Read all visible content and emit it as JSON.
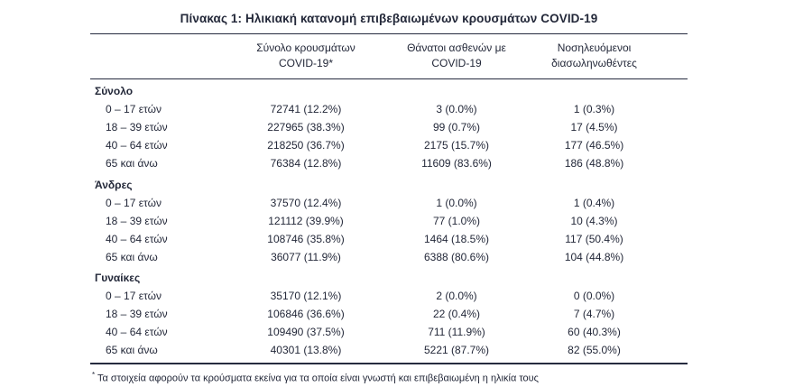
{
  "title": "Πίνακας 1: Ηλικιακή κατανομή επιβεβαιωμένων κρουσμάτων COVID-19",
  "colors": {
    "text": "#232839",
    "border": "#262b3f",
    "background": "#ffffff"
  },
  "table": {
    "header": {
      "col_cases": {
        "line1": "Σύνολο κρουσμάτων",
        "line2": "COVID-19*"
      },
      "col_deaths": {
        "line1": "Θάνατοι ασθενών με",
        "line2": "COVID-19"
      },
      "col_intubated": {
        "line1": "Νοσηλευόμενοι",
        "line2": "διασωληνωθέντες"
      }
    },
    "sections": [
      {
        "label": "Σύνολο",
        "rows": [
          {
            "label": "0 – 17 ετών",
            "cases": "72741 (12.2%)",
            "deaths": "3 (0.0%)",
            "intubated": "1 (0.3%)"
          },
          {
            "label": "18 – 39 ετών",
            "cases": "227965 (38.3%)",
            "deaths": "99 (0.7%)",
            "intubated": "17 (4.5%)"
          },
          {
            "label": "40 – 64 ετών",
            "cases": "218250 (36.7%)",
            "deaths": "2175 (15.7%)",
            "intubated": "177 (46.5%)"
          },
          {
            "label": "65 και άνω",
            "cases": "76384 (12.8%)",
            "deaths": "11609 (83.6%)",
            "intubated": "186 (48.8%)"
          }
        ]
      },
      {
        "label": "Άνδρες",
        "rows": [
          {
            "label": "0 – 17 ετών",
            "cases": "37570 (12.4%)",
            "deaths": "1 (0.0%)",
            "intubated": "1 (0.4%)"
          },
          {
            "label": "18 – 39 ετών",
            "cases": "121112 (39.9%)",
            "deaths": "77 (1.0%)",
            "intubated": "10 (4.3%)"
          },
          {
            "label": "40 – 64 ετών",
            "cases": "108746 (35.8%)",
            "deaths": "1464 (18.5%)",
            "intubated": "117 (50.4%)"
          },
          {
            "label": "65 και άνω",
            "cases": "36077 (11.9%)",
            "deaths": "6388 (80.6%)",
            "intubated": "104 (44.8%)"
          }
        ]
      },
      {
        "label": "Γυναίκες",
        "rows": [
          {
            "label": "0 – 17 ετών",
            "cases": "35170 (12.1%)",
            "deaths": "2 (0.0%)",
            "intubated": "0 (0.0%)"
          },
          {
            "label": "18 – 39 ετών",
            "cases": "106846 (36.6%)",
            "deaths": "22 (0.4%)",
            "intubated": "7 (4.7%)"
          },
          {
            "label": "40 – 64 ετών",
            "cases": "109490 (37.5%)",
            "deaths": "711 (11.9%)",
            "intubated": "60 (40.3%)"
          },
          {
            "label": "65 και άνω",
            "cases": "40301 (13.8%)",
            "deaths": "5221 (87.7%)",
            "intubated": "82 (55.0%)"
          }
        ]
      }
    ]
  },
  "footnote": {
    "marker": "*",
    "text": "Τα στοιχεία αφορούν τα κρούσματα εκείνα για τα οποία είναι γνωστή και επιβεβαιωμένη η ηλικία τους"
  }
}
